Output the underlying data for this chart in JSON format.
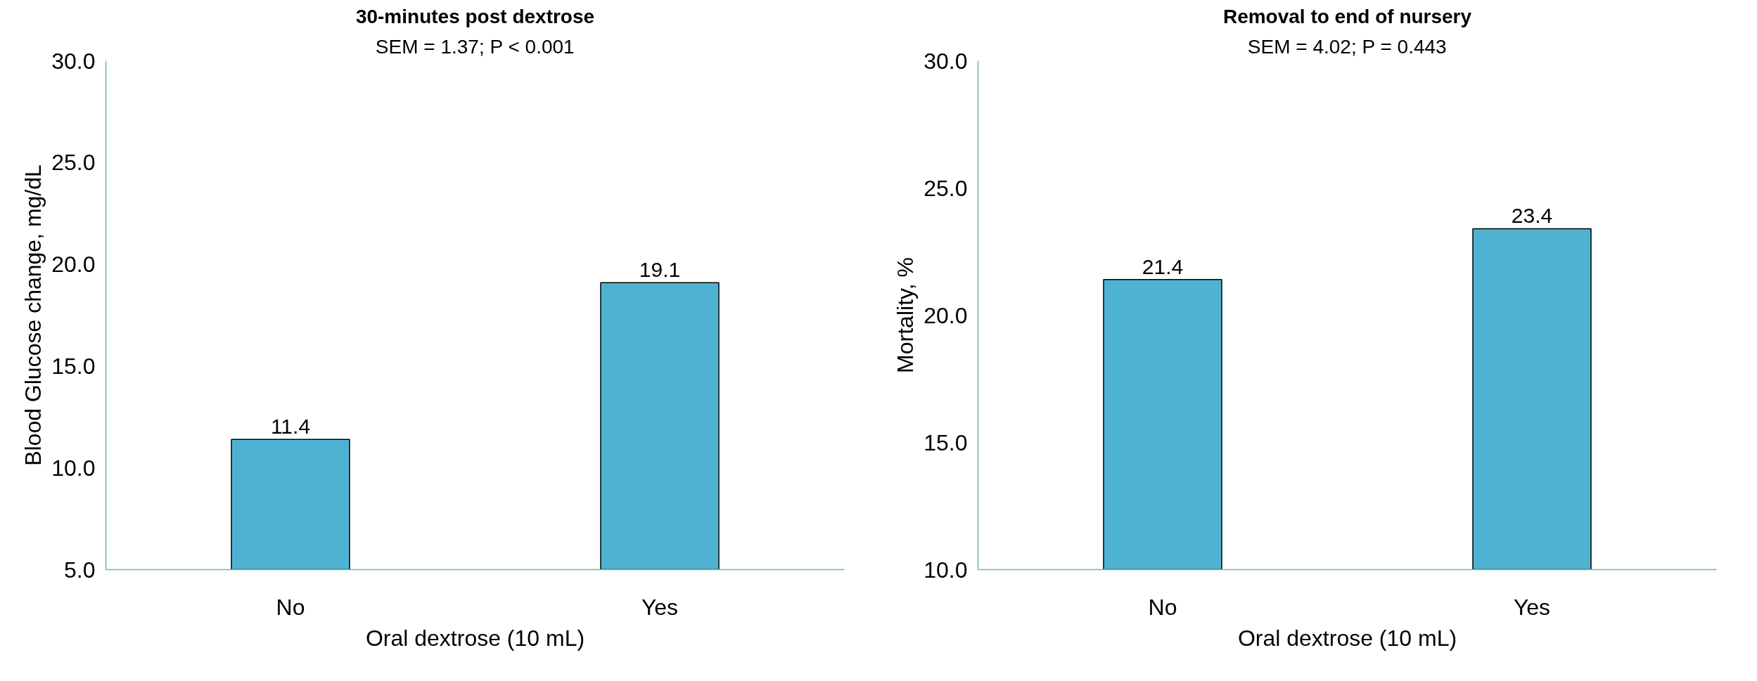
{
  "chart_data": [
    {
      "type": "bar",
      "title": "30-minutes post dextrose",
      "subtitle": "SEM = 1.37; P < 0.001",
      "xlabel": "Oral dextrose (10 mL)",
      "ylabel": "Blood Glucose change, mg/dL",
      "categories": [
        "No",
        "Yes"
      ],
      "values": [
        11.4,
        19.1
      ],
      "color": "#4eb3d3",
      "ylim": [
        5,
        30
      ],
      "yticks": [
        {
          "value": 5,
          "label": "5.0"
        },
        {
          "value": 10,
          "label": "10.0"
        },
        {
          "value": 15,
          "label": "15.0"
        },
        {
          "value": 20,
          "label": "20.0"
        },
        {
          "value": 25,
          "label": "25.0"
        },
        {
          "value": 30,
          "label": "30.0"
        }
      ],
      "data_labels": true,
      "grid": false
    },
    {
      "type": "bar",
      "title": "Removal to end of nursery",
      "subtitle": "SEM = 4.02; P = 0.443",
      "xlabel": "Oral dextrose (10 mL)",
      "ylabel": "Mortality, %",
      "categories": [
        "No",
        "Yes"
      ],
      "values": [
        21.4,
        23.4
      ],
      "color": "#4eb3d3",
      "ylim": [
        10,
        30
      ],
      "yticks": [
        {
          "value": 10,
          "label": "10.0"
        },
        {
          "value": 15,
          "label": "15.0"
        },
        {
          "value": 20,
          "label": "20.0"
        },
        {
          "value": 25,
          "label": "25.0"
        },
        {
          "value": 30,
          "label": "30.0"
        }
      ],
      "data_labels": true,
      "grid": false
    }
  ]
}
